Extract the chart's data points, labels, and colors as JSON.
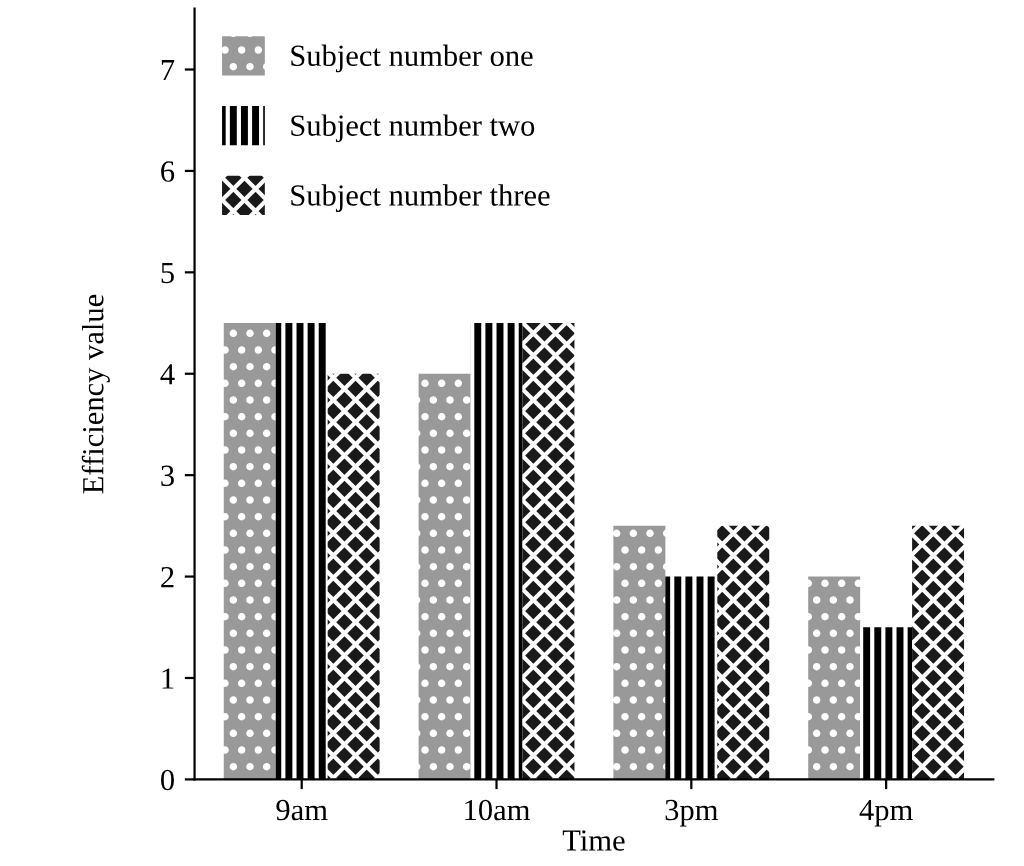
{
  "chart_data": {
    "type": "bar",
    "xlabel": "Time",
    "ylabel": "Efficiency value",
    "categories": [
      "9am",
      "10am",
      "3pm",
      "4pm"
    ],
    "series": [
      {
        "name": "Subject number one",
        "color": "#999999",
        "values": [
          4.5,
          4.0,
          2.5,
          2.0
        ]
      },
      {
        "name": "Subject number two",
        "color": "#000000",
        "values": [
          4.5,
          4.5,
          2.0,
          1.5
        ]
      },
      {
        "name": "Subject number three",
        "color": "#1a1a1a",
        "values": [
          4.0,
          4.5,
          2.5,
          2.5
        ]
      }
    ],
    "ylim": [
      0,
      7.6
    ],
    "yticks": [
      0,
      1,
      2,
      3,
      4,
      5,
      6,
      7
    ],
    "grid": false,
    "legend": "top left"
  }
}
